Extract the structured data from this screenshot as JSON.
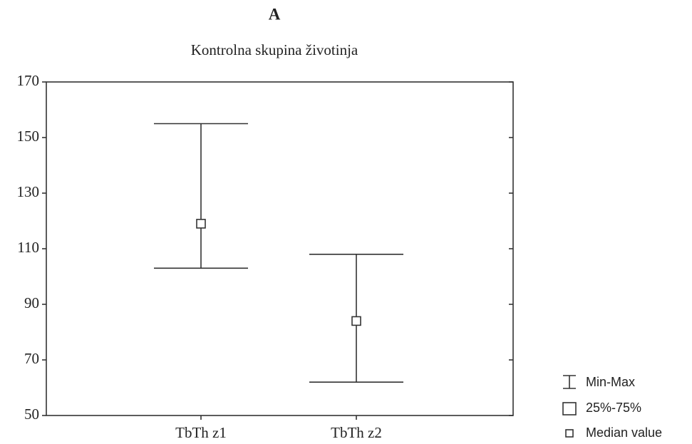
{
  "chart_data": {
    "type": "box",
    "title": "A",
    "subtitle": "Kontrolna skupina životinja",
    "categories": [
      "TbTh z1",
      "TbTh z2"
    ],
    "min": [
      103,
      62
    ],
    "max": [
      155,
      108
    ],
    "median": [
      119,
      84
    ],
    "ylim": [
      50,
      170
    ],
    "yticks": [
      50,
      70,
      90,
      110,
      130,
      150,
      170
    ],
    "legend": [
      "Min-Max",
      "25%-75%",
      "Median value"
    ],
    "color": "#333333"
  }
}
